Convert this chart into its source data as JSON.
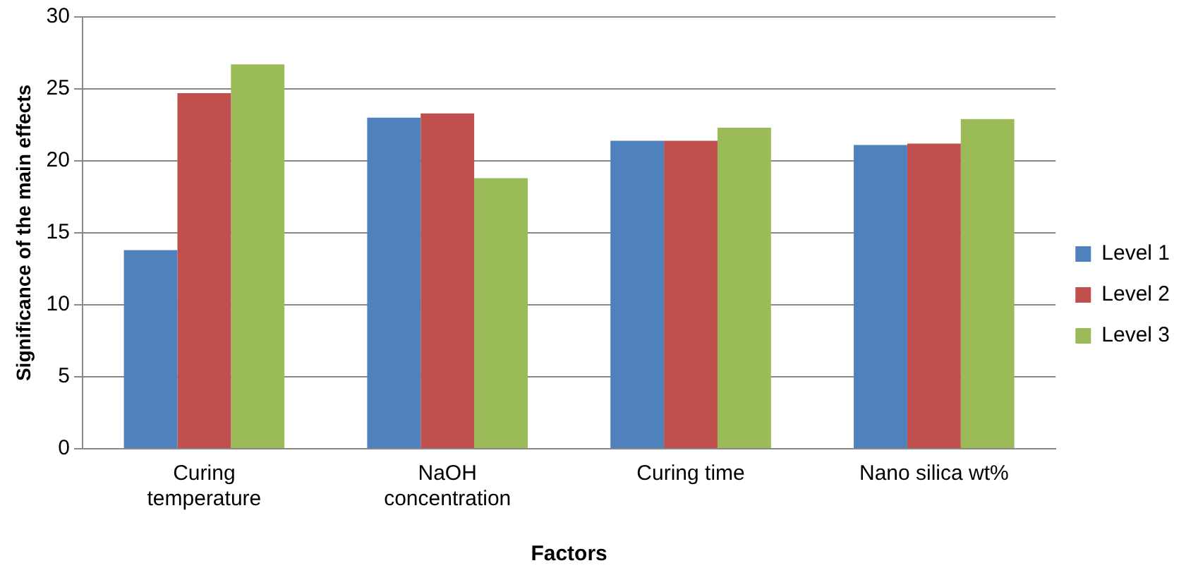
{
  "chart_data": {
    "type": "bar",
    "xlabel": "Factors",
    "ylabel": "Significance of the main effects",
    "categories": [
      "Curing temperature",
      "NaOH concentration",
      "Curing time",
      "Nano silica wt%"
    ],
    "series": [
      {
        "name": "Level 1",
        "color": "#4f81bd",
        "values": [
          13.8,
          23.0,
          21.4,
          21.1
        ]
      },
      {
        "name": "Level 2",
        "color": "#c0504d",
        "values": [
          24.7,
          23.3,
          21.4,
          21.2
        ]
      },
      {
        "name": "Level 3",
        "color": "#9bbb59",
        "values": [
          26.7,
          18.8,
          22.3,
          22.9
        ]
      }
    ],
    "ylim": [
      0,
      30
    ],
    "yticks": [
      0,
      5,
      10,
      15,
      20,
      25,
      30
    ],
    "grid": "y",
    "legend": "right"
  }
}
